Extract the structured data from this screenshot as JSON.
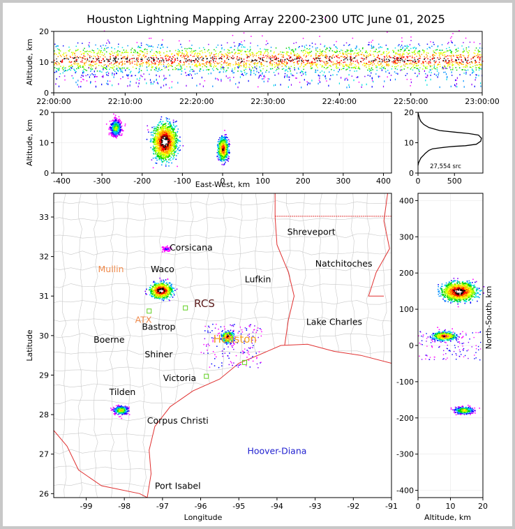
{
  "chart_data": {
    "title": "Houston Lightning Mapping Array 2200-2300 UTC June 01, 2025",
    "time_panel": {
      "type": "heatmap",
      "ylabel": "Altitude, km",
      "yticks": [
        "0",
        "10",
        "20"
      ],
      "xticks": [
        "22:00:00",
        "22:10:00",
        "22:20:00",
        "22:30:00",
        "22:40:00",
        "22:50:00",
        "23:00:00"
      ],
      "ylim": [
        0,
        20
      ]
    },
    "ew_panel": {
      "type": "heatmap",
      "xlabel": "East-West, km",
      "ylabel": "Altitude, km",
      "xticks": [
        "-400",
        "-300",
        "-200",
        "-100",
        "0",
        "100",
        "200",
        "300",
        "400"
      ],
      "yticks": [
        "0",
        "10",
        "20"
      ],
      "xlim": [
        -420,
        420
      ],
      "ylim": [
        0,
        20
      ]
    },
    "histogram": {
      "type": "line",
      "xticks": [
        "0",
        "500"
      ],
      "yticks": [
        "0",
        "10",
        "20"
      ],
      "annotation": "27,554 src",
      "xlim": [
        0,
        890
      ],
      "ylim": [
        0,
        20
      ],
      "x": [
        0,
        5,
        10,
        20,
        30,
        40,
        60,
        80,
        100,
        150,
        200,
        300,
        400,
        500,
        650,
        800,
        860,
        870,
        830,
        700,
        500,
        300,
        150,
        80,
        40,
        20,
        5,
        0
      ],
      "y": [
        2.5,
        3,
        3.5,
        4,
        4.5,
        5,
        5.5,
        6,
        6.5,
        7.5,
        8,
        8.3,
        8.6,
        8.8,
        9,
        9.5,
        10.5,
        11.5,
        12.5,
        13,
        13.5,
        14,
        15,
        16,
        17,
        18,
        19.5,
        20
      ]
    },
    "ns_panel": {
      "type": "heatmap",
      "xlabel": "Altitude, km",
      "ylabel": "North-South, km",
      "xticks": [
        "0",
        "10",
        "20"
      ],
      "yticks": [
        "400",
        "300",
        "200",
        "100",
        "0",
        "-100",
        "-200",
        "-300",
        "-400"
      ],
      "xlim": [
        0,
        20
      ],
      "ylim": [
        -420,
        420
      ]
    },
    "map": {
      "type": "scatter",
      "xlabel": "Longitude",
      "ylabel": "Latitude",
      "xticks": [
        "-99",
        "-98",
        "-97",
        "-96",
        "-95",
        "-94",
        "-93",
        "-92",
        "-91"
      ],
      "yticks": [
        "33",
        "32",
        "31",
        "30",
        "29",
        "28",
        "27",
        "26"
      ],
      "xlim": [
        -99.85,
        -91
      ],
      "ylim": [
        25.9,
        33.6
      ],
      "cities": [
        {
          "name": "Shreveport",
          "lon": -93.1,
          "lat": 32.55,
          "color": "#000000"
        },
        {
          "name": "Corsicana",
          "lon": -96.25,
          "lat": 32.15,
          "color": "#000000"
        },
        {
          "name": "Mullin",
          "lon": -98.35,
          "lat": 31.6,
          "color": "#f08a4b"
        },
        {
          "name": "Waco",
          "lon": -97.0,
          "lat": 31.6,
          "color": "#000000"
        },
        {
          "name": "Natchitoches",
          "lon": -92.25,
          "lat": 31.75,
          "color": "#000000"
        },
        {
          "name": "Lufkin",
          "lon": -94.5,
          "lat": 31.35,
          "color": "#000000"
        },
        {
          "name": "RCS",
          "lon": -95.9,
          "lat": 30.72,
          "color": "#5a1a1a"
        },
        {
          "name": "ATX",
          "lon": -97.5,
          "lat": 30.32,
          "color": "#f08a4b"
        },
        {
          "name": "Bastrop",
          "lon": -97.1,
          "lat": 30.15,
          "color": "#000000"
        },
        {
          "name": "Lake Charles",
          "lon": -92.5,
          "lat": 30.27,
          "color": "#000000"
        },
        {
          "name": "Houston",
          "lon": -95.1,
          "lat": 29.82,
          "color": "#f0a020"
        },
        {
          "name": "Boerne",
          "lon": -98.4,
          "lat": 29.82,
          "color": "#000000"
        },
        {
          "name": "Shiner",
          "lon": -97.1,
          "lat": 29.45,
          "color": "#000000"
        },
        {
          "name": "Victoria",
          "lon": -96.55,
          "lat": 28.85,
          "color": "#000000"
        },
        {
          "name": "Tilden",
          "lon": -98.05,
          "lat": 28.5,
          "color": "#000000"
        },
        {
          "name": "Corpus Christi",
          "lon": -96.6,
          "lat": 27.77,
          "color": "#000000"
        },
        {
          "name": "Hoover-Diana",
          "lon": -94.0,
          "lat": 27.0,
          "color": "#2020d0"
        },
        {
          "name": "Port Isabel",
          "lon": -96.6,
          "lat": 26.12,
          "color": "#000000"
        }
      ],
      "storms": [
        {
          "lon": -97.05,
          "lat": 31.15
        },
        {
          "lon": -95.3,
          "lat": 29.98
        },
        {
          "lon": -98.1,
          "lat": 28.12
        },
        {
          "lon": -96.9,
          "lat": 32.2
        }
      ]
    }
  }
}
